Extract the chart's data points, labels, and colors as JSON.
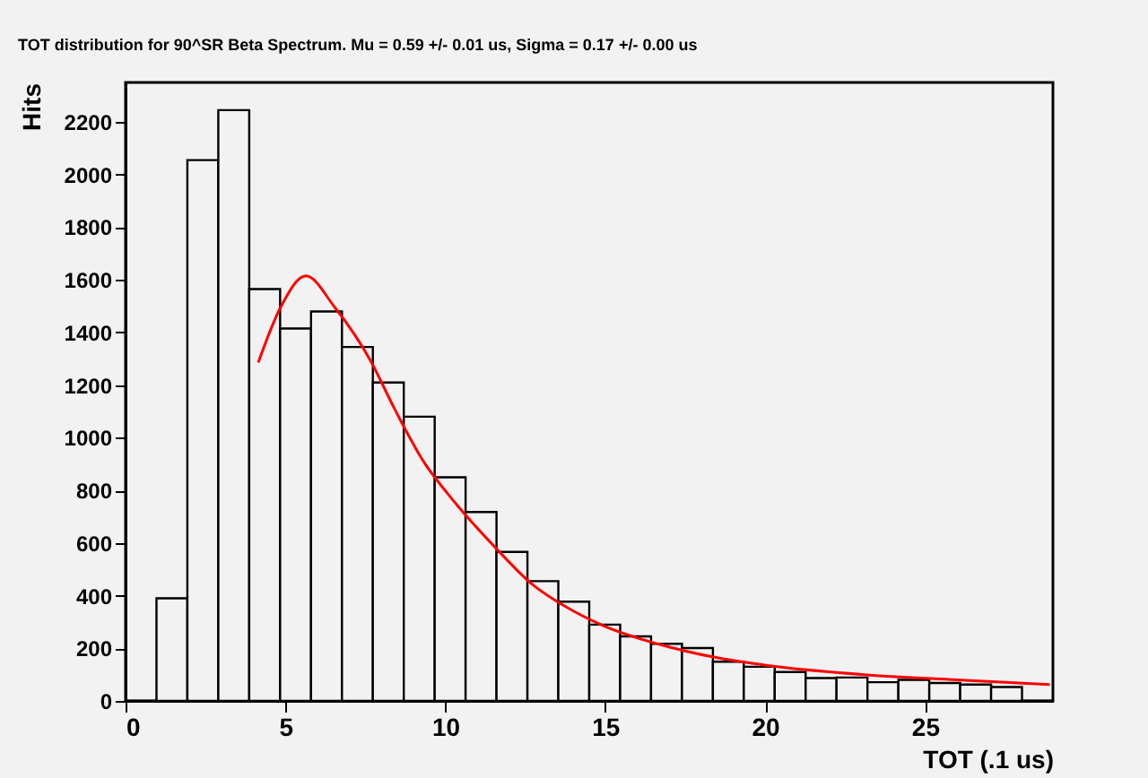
{
  "chart_data": {
    "type": "histogram",
    "title": "TOT distribution for 90^SR Beta Spectrum.  Mu = 0.59 +/- 0.01 us, Sigma =  0.17 +/- 0.00 us",
    "xlabel": "TOT (.1 us)",
    "ylabel": "Hits",
    "series": [
      {
        "color": "#000000",
        "bins": [
          0,
          0.967,
          1.933,
          2.9,
          3.867,
          4.833,
          5.8,
          6.767,
          7.733,
          8.7,
          9.667,
          10.633,
          11.6,
          12.567,
          13.533,
          14.5,
          15.467,
          16.433,
          17.4,
          18.367,
          19.333,
          20.3,
          21.267,
          22.233,
          23.2,
          24.167,
          25.133,
          26.1,
          27.067,
          28.033,
          29
        ],
        "values": [
          0,
          390,
          2055,
          2245,
          1565,
          1415,
          1480,
          1345,
          1210,
          1080,
          850,
          718,
          566,
          455,
          377,
          290,
          245,
          217,
          201,
          149,
          130,
          110,
          87,
          89,
          71,
          80,
          68,
          62,
          53,
          0
        ]
      },
      {
        "type": "line",
        "color": "#ff0000",
        "x": [
          4.15,
          4.85,
          5.64,
          6.54,
          7.67,
          8.42,
          9.36,
          10.07,
          11.57,
          12.7,
          13.82,
          14.94,
          16.63,
          18.5,
          20.37,
          23.18,
          25.99,
          28.9
        ],
        "values": [
          1286,
          1496,
          1615,
          1496,
          1291,
          1108,
          902,
          788,
          582,
          445,
          354,
          286,
          217,
          164,
          130,
          99,
          80,
          62
        ]
      }
    ],
    "xlim": [
      0,
      29
    ],
    "ylim": [
      0,
      2350
    ],
    "xticks": [
      0,
      5,
      10,
      15,
      20,
      25
    ],
    "yticks": [
      0,
      200,
      400,
      600,
      800,
      1000,
      1200,
      1400,
      1600,
      1800,
      2000,
      2200
    ]
  }
}
